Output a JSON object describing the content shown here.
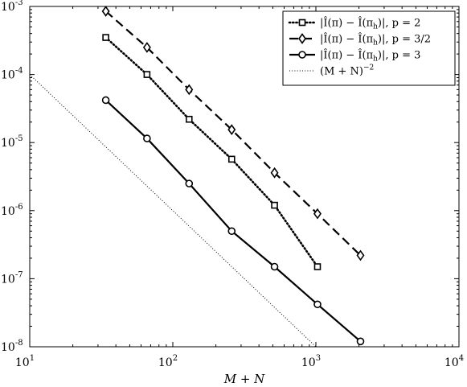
{
  "chart_data": {
    "type": "line",
    "xscale": "log",
    "yscale": "log",
    "xlim": [
      10,
      10000
    ],
    "ylim": [
      1e-08,
      0.001
    ],
    "xlabel": "M + N",
    "ylabel": "",
    "title": "",
    "grid": false,
    "legend_position": "top-right",
    "x_ticks": [
      {
        "value": 10,
        "base": "10",
        "exp": "1"
      },
      {
        "value": 100,
        "base": "10",
        "exp": "2"
      },
      {
        "value": 1000,
        "base": "10",
        "exp": "3"
      },
      {
        "value": 10000,
        "base": "10",
        "exp": "4"
      }
    ],
    "y_ticks": [
      {
        "value": 1e-08,
        "base": "10",
        "exp": "-8"
      },
      {
        "value": 1e-07,
        "base": "10",
        "exp": "-7"
      },
      {
        "value": 1e-06,
        "base": "10",
        "exp": "-6"
      },
      {
        "value": 1e-05,
        "base": "10",
        "exp": "-5"
      },
      {
        "value": 0.0001,
        "base": "10",
        "exp": "-4"
      },
      {
        "value": 0.001,
        "base": "10",
        "exp": "-3"
      }
    ],
    "series": [
      {
        "name": "|Î(π) − Î(π_h)|,  p = 2",
        "label_main": "|Î(π) − Î(π",
        "label_sub": "h",
        "label_tail": ")|,  p = 2",
        "style": "dotted",
        "marker": "square",
        "color": "#000000",
        "x": [
          34,
          66,
          130,
          258,
          514,
          1026
        ],
        "y": [
          0.00035,
          0.0001,
          2.2e-05,
          5.7e-06,
          1.2e-06,
          1.5e-07
        ]
      },
      {
        "name": "|Î(π) − Î(π_h)|,  p = 3/2",
        "label_main": "|Î(π) − Î(π",
        "label_sub": "h",
        "label_tail": ")|,  p = 3/2",
        "style": "dashed",
        "marker": "diamond",
        "color": "#000000",
        "x": [
          34,
          66,
          130,
          258,
          514,
          1026,
          2050
        ],
        "y": [
          0.00085,
          0.00025,
          6e-05,
          1.55e-05,
          3.6e-06,
          9e-07,
          2.2e-07
        ]
      },
      {
        "name": "|Î(π) − Î(π_h)|,  p = 3",
        "label_main": "|Î(π) − Î(π",
        "label_sub": "h",
        "label_tail": ")|,  p = 3",
        "style": "solid",
        "marker": "circle",
        "color": "#000000",
        "x": [
          34,
          66,
          130,
          258,
          514,
          1026,
          2050
        ],
        "y": [
          4.2e-05,
          1.15e-05,
          2.5e-06,
          5e-07,
          1.5e-07,
          4.2e-08,
          1.2e-08
        ]
      },
      {
        "name": "(M + N)^−2",
        "label_main": "(M + N)",
        "label_sup": "−2",
        "style": "dotted-thin",
        "marker": "none",
        "color": "#000000",
        "x": [
          10,
          1000
        ],
        "y": [
          0.0001,
          1e-08
        ]
      }
    ]
  }
}
